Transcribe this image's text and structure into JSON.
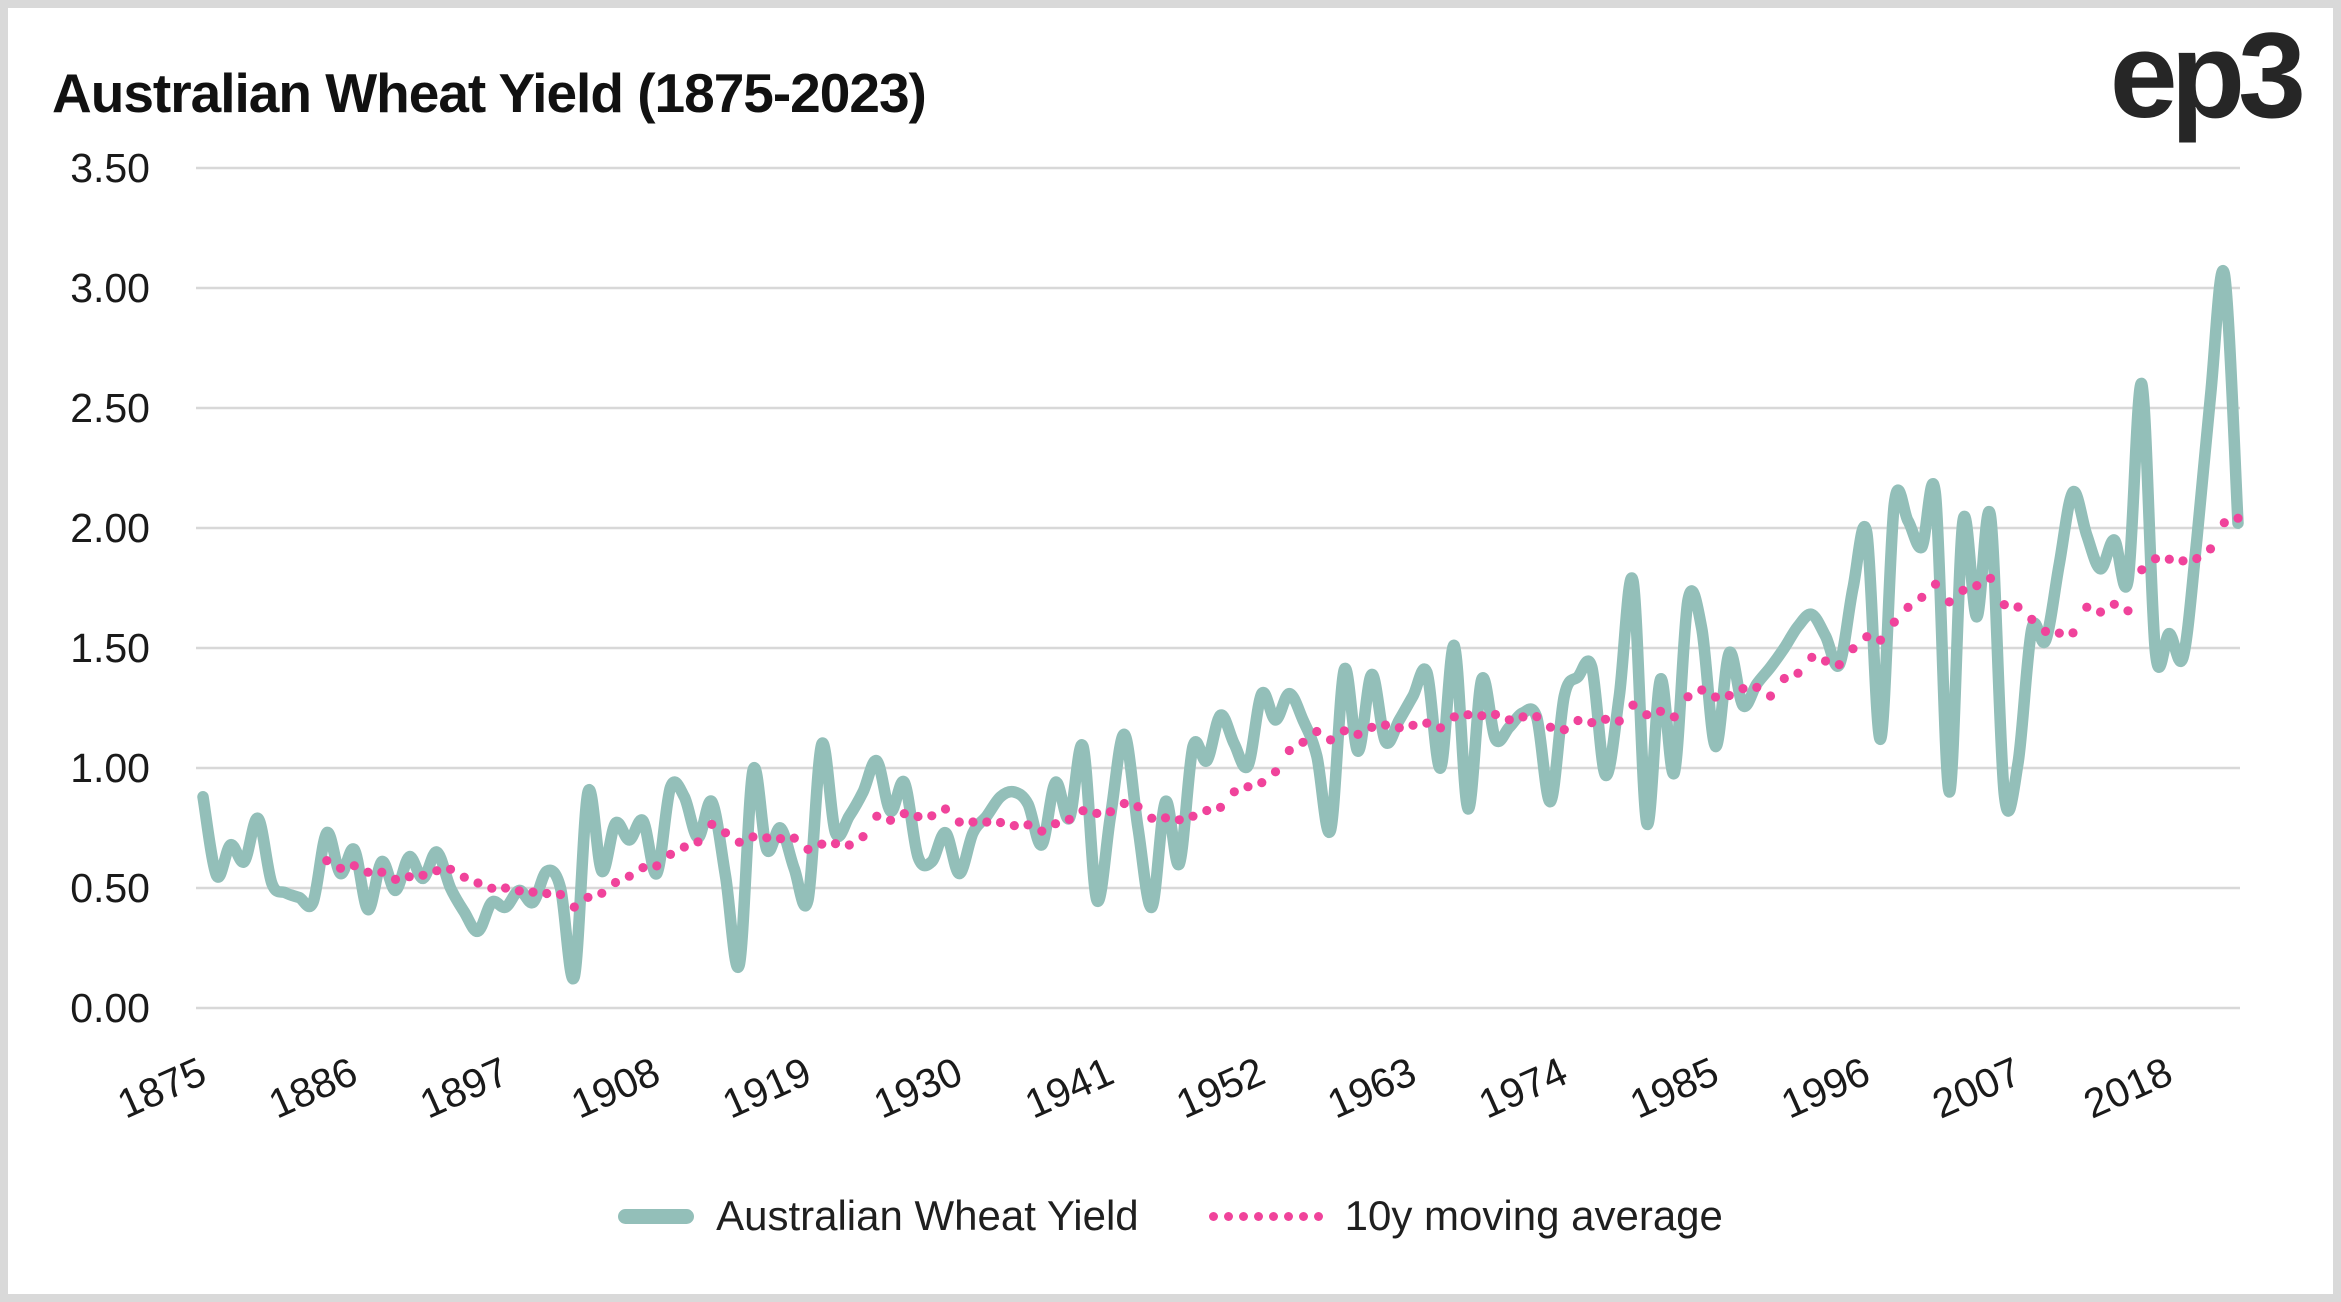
{
  "header": {
    "title": "Australian Wheat Yield (1875-2023)",
    "logo_text": "ep3"
  },
  "colors": {
    "yield_line": "#93bfb9",
    "moving_average": "#f0439b",
    "gridline": "#d8d8d8",
    "axis_text": "#1a1a1a",
    "frame_border": "#d9d9d9",
    "background": "#ffffff"
  },
  "y_axis": {
    "tick_labels": [
      "3.50",
      "3.00",
      "2.50",
      "2.00",
      "1.50",
      "1.00",
      "0.50",
      "0.00"
    ],
    "min": 0.0,
    "max": 3.5,
    "step": 0.5
  },
  "x_axis": {
    "tick_labels": [
      "1875",
      "1886",
      "1897",
      "1908",
      "1919",
      "1930",
      "1941",
      "1952",
      "1963",
      "1974",
      "1985",
      "1996",
      "2007",
      "2018"
    ],
    "tick_interval_years": 11
  },
  "legend": {
    "items": [
      {
        "label": "Australian Wheat Yield",
        "marker": "solid-line"
      },
      {
        "label": "10y moving average",
        "marker": "dotted-line"
      }
    ]
  },
  "chart_data": {
    "type": "line",
    "title": "Australian Wheat Yield (1875-2023)",
    "xlabel": "",
    "ylabel": "",
    "ylim": [
      0.0,
      3.5
    ],
    "xlim_years": [
      1875,
      2023
    ],
    "grid": "horizontal",
    "legend_position": "bottom-center",
    "years": [
      1875,
      1876,
      1877,
      1878,
      1879,
      1880,
      1881,
      1882,
      1883,
      1884,
      1885,
      1886,
      1887,
      1888,
      1889,
      1890,
      1891,
      1892,
      1893,
      1894,
      1895,
      1896,
      1897,
      1898,
      1899,
      1900,
      1901,
      1902,
      1903,
      1904,
      1905,
      1906,
      1907,
      1908,
      1909,
      1910,
      1911,
      1912,
      1913,
      1914,
      1915,
      1916,
      1917,
      1918,
      1919,
      1920,
      1921,
      1922,
      1923,
      1924,
      1925,
      1926,
      1927,
      1928,
      1929,
      1930,
      1931,
      1932,
      1933,
      1934,
      1935,
      1936,
      1937,
      1938,
      1939,
      1940,
      1941,
      1942,
      1943,
      1944,
      1945,
      1946,
      1947,
      1948,
      1949,
      1950,
      1951,
      1952,
      1953,
      1954,
      1955,
      1956,
      1957,
      1958,
      1959,
      1960,
      1961,
      1962,
      1963,
      1964,
      1965,
      1966,
      1967,
      1968,
      1969,
      1970,
      1971,
      1972,
      1973,
      1974,
      1975,
      1976,
      1977,
      1978,
      1979,
      1980,
      1981,
      1982,
      1983,
      1984,
      1985,
      1986,
      1987,
      1988,
      1989,
      1990,
      1991,
      1992,
      1993,
      1994,
      1995,
      1996,
      1997,
      1998,
      1999,
      2000,
      2001,
      2002,
      2003,
      2004,
      2005,
      2006,
      2007,
      2008,
      2009,
      2010,
      2011,
      2012,
      2013,
      2014,
      2015,
      2016,
      2017,
      2018,
      2019,
      2020,
      2021,
      2022,
      2023
    ],
    "series": [
      {
        "name": "Australian Wheat Yield",
        "style": "solid",
        "color": "#93bfb9",
        "values": [
          0.88,
          0.55,
          0.68,
          0.61,
          0.79,
          0.52,
          0.48,
          0.46,
          0.44,
          0.73,
          0.56,
          0.66,
          0.41,
          0.61,
          0.49,
          0.63,
          0.54,
          0.65,
          0.5,
          0.4,
          0.32,
          0.44,
          0.42,
          0.49,
          0.44,
          0.57,
          0.5,
          0.13,
          0.9,
          0.57,
          0.77,
          0.7,
          0.78,
          0.56,
          0.92,
          0.88,
          0.71,
          0.86,
          0.55,
          0.18,
          0.99,
          0.66,
          0.75,
          0.58,
          0.45,
          1.1,
          0.73,
          0.8,
          0.9,
          1.03,
          0.82,
          0.94,
          0.63,
          0.61,
          0.73,
          0.56,
          0.73,
          0.8,
          0.88,
          0.9,
          0.85,
          0.68,
          0.94,
          0.79,
          1.09,
          0.45,
          0.8,
          1.14,
          0.75,
          0.42,
          0.86,
          0.6,
          1.09,
          1.03,
          1.22,
          1.1,
          1.01,
          1.31,
          1.2,
          1.31,
          1.2,
          1.05,
          0.74,
          1.41,
          1.07,
          1.39,
          1.11,
          1.2,
          1.3,
          1.4,
          1.0,
          1.51,
          0.83,
          1.37,
          1.12,
          1.17,
          1.23,
          1.21,
          0.86,
          1.3,
          1.38,
          1.42,
          0.97,
          1.3,
          1.78,
          0.77,
          1.37,
          0.98,
          1.7,
          1.58,
          1.09,
          1.48,
          1.26,
          1.35,
          1.42,
          1.5,
          1.59,
          1.64,
          1.55,
          1.43,
          1.75,
          1.98,
          1.12,
          2.1,
          2.03,
          1.92,
          2.14,
          0.9,
          2.03,
          1.63,
          2.05,
          0.89,
          1.02,
          1.58,
          1.53,
          1.85,
          2.15,
          1.97,
          1.83,
          1.95,
          1.78,
          2.6,
          1.48,
          1.56,
          1.46,
          1.95,
          2.55,
          3.06,
          2.02
        ]
      },
      {
        "name": "10y moving average",
        "style": "dotted",
        "color": "#f0439b",
        "derived_from": "Australian Wheat Yield",
        "derivation": "trailing-mean",
        "window_years": 10,
        "first_plotted_year": 1884
      }
    ]
  }
}
